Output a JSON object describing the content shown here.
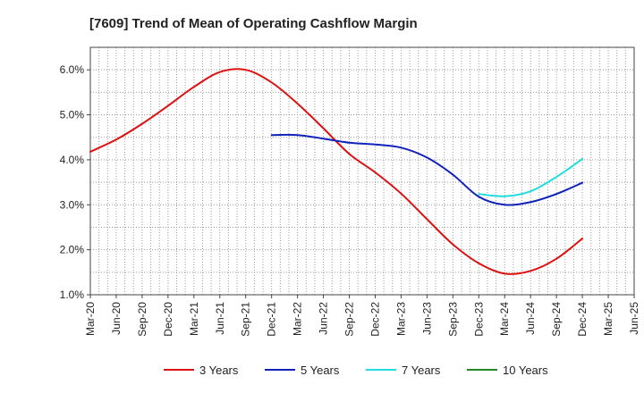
{
  "chart_data": {
    "type": "line",
    "title": "[7609]  Trend of Mean of Operating Cashflow Margin",
    "xlabel": "",
    "ylabel": "",
    "ylim": [
      1.0,
      6.5
    ],
    "yticks": [
      1.0,
      2.0,
      3.0,
      4.0,
      5.0,
      6.0
    ],
    "ytick_labels": [
      "1.0%",
      "2.0%",
      "3.0%",
      "4.0%",
      "5.0%",
      "6.0%"
    ],
    "categories": [
      "Mar-20",
      "Jun-20",
      "Sep-20",
      "Dec-20",
      "Mar-21",
      "Jun-21",
      "Sep-21",
      "Dec-21",
      "Mar-22",
      "Jun-22",
      "Sep-22",
      "Dec-22",
      "Mar-23",
      "Jun-23",
      "Sep-23",
      "Dec-23",
      "Mar-24",
      "Jun-24",
      "Sep-24",
      "Dec-24",
      "Mar-25",
      "Jun-25"
    ],
    "grid": true,
    "legend_position": "bottom",
    "series": [
      {
        "name": "3 Years",
        "color": "#dd1111",
        "values": [
          4.18,
          4.45,
          4.8,
          5.2,
          5.62,
          5.95,
          6.0,
          5.72,
          5.25,
          4.7,
          4.13,
          3.72,
          3.25,
          2.68,
          2.12,
          1.7,
          1.47,
          1.53,
          1.8,
          2.25,
          null,
          null
        ]
      },
      {
        "name": "5 Years",
        "color": "#1122bb",
        "values": [
          null,
          null,
          null,
          null,
          null,
          null,
          null,
          4.55,
          4.55,
          4.47,
          4.38,
          4.34,
          4.27,
          4.05,
          3.67,
          3.18,
          3.0,
          3.06,
          3.24,
          3.49,
          null,
          null
        ]
      },
      {
        "name": "7 Years",
        "color": "#22dddd",
        "values": [
          null,
          null,
          null,
          null,
          null,
          null,
          null,
          null,
          null,
          null,
          null,
          null,
          null,
          null,
          null,
          3.24,
          3.19,
          3.3,
          3.62,
          4.02,
          null,
          null
        ]
      },
      {
        "name": "10 Years",
        "color": "#228822",
        "values": [
          null,
          null,
          null,
          null,
          null,
          null,
          null,
          null,
          null,
          null,
          null,
          null,
          null,
          null,
          null,
          null,
          null,
          null,
          null,
          null,
          null,
          null
        ]
      }
    ]
  }
}
